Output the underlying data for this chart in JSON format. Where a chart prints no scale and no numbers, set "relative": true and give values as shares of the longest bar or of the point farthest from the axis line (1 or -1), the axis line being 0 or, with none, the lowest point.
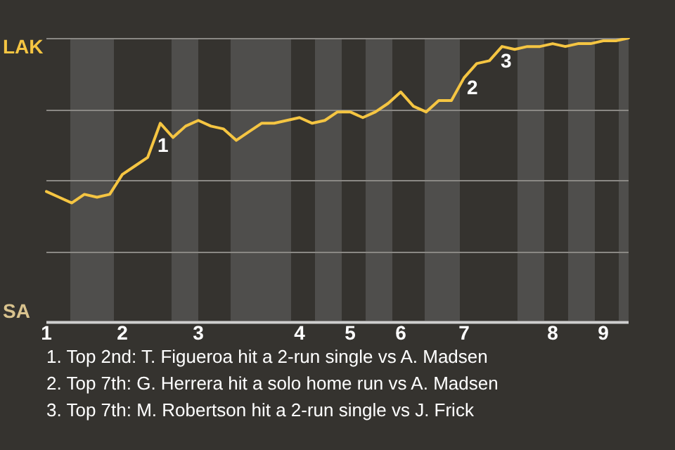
{
  "chart_data": {
    "type": "line",
    "relative": true,
    "categories": [
      "1",
      null,
      null,
      null,
      null,
      null,
      "2",
      null,
      null,
      null,
      null,
      null,
      "3",
      null,
      null,
      null,
      null,
      null,
      null,
      null,
      "4",
      null,
      null,
      null,
      "5",
      null,
      null,
      null,
      "6",
      null,
      null,
      null,
      null,
      "7",
      null,
      null,
      null,
      null,
      null,
      null,
      "8",
      null,
      null,
      null,
      "9",
      null,
      null
    ],
    "series": [
      {
        "color": "#f5c542",
        "values": [
          0.46,
          0.44,
          0.42,
          0.45,
          0.44,
          0.45,
          0.52,
          0.55,
          0.58,
          0.7,
          0.65,
          0.69,
          0.71,
          0.69,
          0.68,
          0.64,
          0.67,
          0.7,
          0.7,
          0.71,
          0.72,
          0.7,
          0.71,
          0.74,
          0.74,
          0.72,
          0.74,
          0.77,
          0.81,
          0.76,
          0.74,
          0.78,
          0.78,
          0.86,
          0.91,
          0.92,
          0.97,
          0.96,
          0.97,
          0.97,
          0.98,
          0.97,
          0.98,
          0.98,
          0.99,
          0.99,
          1
        ],
        "name": null
      }
    ],
    "grid": "y",
    "legend": false,
    "marker": "none",
    "line_style": "solid",
    "annotations": [
      "LAK",
      "SA",
      "1",
      "2",
      "3",
      "1. Top 2nd: T. Figueroa hit a 2-run single vs A. Madsen",
      "2. Top 7th: G. Herrera hit a solo home run vs A. Madsen",
      "3. Top 7th: M. Robertson hit a 2-run single vs J. Frick"
    ]
  }
}
